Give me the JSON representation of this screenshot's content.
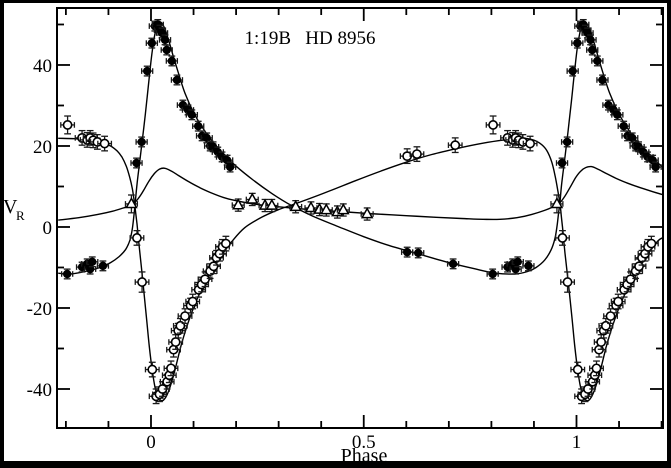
{
  "figure": {
    "title": "1:19B   HD 8956",
    "xlabel": "Phase",
    "ylabel": "V",
    "ylabel_sub": "R"
  },
  "colors": {
    "ink": "#000000",
    "paper": "#ffffff"
  },
  "axes": {
    "x": {
      "major_ticks": [
        0,
        0.5,
        1
      ],
      "major_labels": [
        "0",
        "0.5",
        "1"
      ],
      "minor_step": 0.1,
      "minor_from": -0.2,
      "minor_to": 1.2
    },
    "y": {
      "major_ticks": [
        -40,
        -20,
        0,
        20,
        40
      ],
      "major_labels": [
        "-40",
        "-20",
        "0",
        "20",
        "40"
      ],
      "minor_step": 10,
      "minor_from": -50,
      "minor_to": 50
    }
  },
  "chart_data": {
    "type": "scatter",
    "title": "1:19B HD 8956",
    "xlabel": "Phase",
    "ylabel": "V_R",
    "xlim": [
      -0.2209,
      1.2033
    ],
    "ylim": [
      -49.63,
      54.07
    ],
    "grid": false,
    "legend": "none",
    "phase_fold_note": "points with phase <= 0.203 are re-plotted at phase+1; points with phase >= 0.779 are re-plotted at phase-1",
    "series": [
      {
        "name": "primary component (filled circles)",
        "marker": "filled-circle",
        "x_err": 0.013,
        "y_err": 1.2,
        "points": [
          [
            0.002,
            45.4
          ],
          [
            0.009,
            49.6
          ],
          [
            0.016,
            50.0
          ],
          [
            0.021,
            48.6
          ],
          [
            0.026,
            47.9
          ],
          [
            0.033,
            46.2
          ],
          [
            0.037,
            43.7
          ],
          [
            0.049,
            41.0
          ],
          [
            0.061,
            36.3
          ],
          [
            0.075,
            30.1
          ],
          [
            0.087,
            28.9
          ],
          [
            0.096,
            27.7
          ],
          [
            0.111,
            24.9
          ],
          [
            0.12,
            22.5
          ],
          [
            0.131,
            22.0
          ],
          [
            0.139,
            20.0
          ],
          [
            0.146,
            19.8
          ],
          [
            0.157,
            18.5
          ],
          [
            0.167,
            17.3
          ],
          [
            0.179,
            16.5
          ],
          [
            0.186,
            14.8
          ],
          [
            0.602,
            -6.2
          ],
          [
            0.628,
            -6.4
          ],
          [
            0.71,
            -9.1
          ],
          [
            0.803,
            -11.6
          ],
          [
            0.838,
            -9.9
          ],
          [
            0.85,
            -9.1
          ],
          [
            0.857,
            -10.4
          ],
          [
            0.862,
            -8.6
          ],
          [
            0.887,
            -9.6
          ],
          [
            0.966,
            15.8
          ],
          [
            0.978,
            21.0
          ],
          [
            0.991,
            38.5
          ]
        ]
      },
      {
        "name": "secondary component (open circles)",
        "marker": "open-circle",
        "x_err": 0.016,
        "y_err": 1.8,
        "points": [
          [
            0.003,
            -35.2
          ],
          [
            0.012,
            -41.8
          ],
          [
            0.02,
            -41.3
          ],
          [
            0.027,
            -40.0
          ],
          [
            0.038,
            -38.2
          ],
          [
            0.043,
            -36.6
          ],
          [
            0.047,
            -34.9
          ],
          [
            0.053,
            -30.3
          ],
          [
            0.058,
            -28.4
          ],
          [
            0.064,
            -25.6
          ],
          [
            0.069,
            -24.4
          ],
          [
            0.08,
            -22.0
          ],
          [
            0.093,
            -19.4
          ],
          [
            0.098,
            -18.4
          ],
          [
            0.112,
            -15.5
          ],
          [
            0.119,
            -14.2
          ],
          [
            0.127,
            -12.9
          ],
          [
            0.139,
            -10.9
          ],
          [
            0.147,
            -9.7
          ],
          [
            0.154,
            -7.6
          ],
          [
            0.161,
            -6.6
          ],
          [
            0.168,
            -4.9
          ],
          [
            0.176,
            -4.1
          ],
          [
            0.602,
            17.5
          ],
          [
            0.625,
            18.0
          ],
          [
            0.715,
            20.2
          ],
          [
            0.804,
            25.2,
            2.2
          ],
          [
            0.838,
            22.0
          ],
          [
            0.85,
            21.5
          ],
          [
            0.857,
            22.0
          ],
          [
            0.864,
            21.4
          ],
          [
            0.874,
            21.0
          ],
          [
            0.891,
            20.6
          ],
          [
            0.967,
            -2.7
          ],
          [
            0.979,
            -13.6,
            2.5
          ]
        ]
      },
      {
        "name": "tertiary component (open triangles)",
        "marker": "open-triangle",
        "x_err": 0.014,
        "y_err": 1.5,
        "points": [
          [
            0.205,
            5.4
          ],
          [
            0.238,
            6.8
          ],
          [
            0.268,
            5.3
          ],
          [
            0.284,
            5.3
          ],
          [
            0.34,
            5.0
          ],
          [
            0.376,
            4.7
          ],
          [
            0.396,
            4.3
          ],
          [
            0.412,
            4.2
          ],
          [
            0.438,
            3.7
          ],
          [
            0.452,
            4.2
          ],
          [
            0.508,
            3.2
          ],
          [
            0.954,
            5.7,
            2.2
          ]
        ]
      }
    ],
    "curves": [
      {
        "name": "primary model curve",
        "points": [
          [
            -0.218,
            -11.4
          ],
          [
            -0.19,
            -11.6
          ],
          [
            -0.155,
            -11.0
          ],
          [
            -0.12,
            -10.0
          ],
          [
            -0.095,
            -8.8
          ],
          [
            -0.075,
            -7.3
          ],
          [
            -0.06,
            -5.6
          ],
          [
            -0.05,
            -3.4
          ],
          [
            -0.044,
            -0.5
          ],
          [
            -0.04,
            3.0
          ],
          [
            -0.037,
            5.9
          ],
          [
            -0.033,
            10.5
          ],
          [
            -0.026,
            16.5
          ],
          [
            -0.018,
            23.5
          ],
          [
            -0.01,
            31.0
          ],
          [
            -0.003,
            38.0
          ],
          [
            0.003,
            43.5
          ],
          [
            0.009,
            47.5
          ],
          [
            0.016,
            50.0
          ],
          [
            0.023,
            50.6
          ],
          [
            0.031,
            49.3
          ],
          [
            0.041,
            46.3
          ],
          [
            0.052,
            42.3
          ],
          [
            0.065,
            37.8
          ],
          [
            0.08,
            33.0
          ],
          [
            0.1,
            28.3
          ],
          [
            0.12,
            24.7
          ],
          [
            0.145,
            21.0
          ],
          [
            0.17,
            18.0
          ],
          [
            0.2,
            15.0
          ],
          [
            0.24,
            11.6
          ],
          [
            0.285,
            8.2
          ],
          [
            0.33,
            5.3
          ],
          [
            0.38,
            2.7
          ],
          [
            0.44,
            0.1
          ],
          [
            0.5,
            -2.4
          ],
          [
            0.56,
            -4.6
          ],
          [
            0.63,
            -6.7
          ],
          [
            0.7,
            -8.8
          ],
          [
            0.76,
            -10.3
          ],
          [
            0.81,
            -11.4
          ],
          [
            0.855,
            -11.6
          ],
          [
            0.885,
            -11.0
          ],
          [
            0.905,
            -10.0
          ],
          [
            0.925,
            -8.2
          ],
          [
            0.94,
            -5.7
          ],
          [
            0.949,
            -3.0
          ],
          [
            0.954,
            0.0
          ],
          [
            0.958,
            3.5
          ],
          [
            0.961,
            5.9
          ],
          [
            0.965,
            10.5
          ],
          [
            0.972,
            16.5
          ],
          [
            0.98,
            23.5
          ],
          [
            0.988,
            31.0
          ],
          [
            0.995,
            38.0
          ],
          [
            1.001,
            43.5
          ],
          [
            1.007,
            47.5
          ],
          [
            1.014,
            50.0
          ],
          [
            1.021,
            50.6
          ],
          [
            1.029,
            49.3
          ],
          [
            1.039,
            46.3
          ],
          [
            1.05,
            42.3
          ],
          [
            1.063,
            37.8
          ],
          [
            1.078,
            33.0
          ],
          [
            1.098,
            28.3
          ],
          [
            1.118,
            24.7
          ],
          [
            1.143,
            21.0
          ],
          [
            1.168,
            18.0
          ],
          [
            1.198,
            15.2
          ],
          [
            1.206,
            14.6
          ]
        ]
      },
      {
        "name": "secondary model curve",
        "points": [
          [
            -0.218,
            21.9
          ],
          [
            -0.18,
            21.8
          ],
          [
            -0.14,
            21.4
          ],
          [
            -0.115,
            20.9
          ],
          [
            -0.095,
            20.0
          ],
          [
            -0.08,
            18.8
          ],
          [
            -0.068,
            17.2
          ],
          [
            -0.058,
            15.0
          ],
          [
            -0.05,
            12.3
          ],
          [
            -0.044,
            9.5
          ],
          [
            -0.04,
            6.8
          ],
          [
            -0.037,
            4.5
          ],
          [
            -0.033,
            0.8
          ],
          [
            -0.027,
            -5.5
          ],
          [
            -0.019,
            -13.5
          ],
          [
            -0.011,
            -22.0
          ],
          [
            -0.004,
            -29.5
          ],
          [
            0.003,
            -35.5
          ],
          [
            0.01,
            -39.8
          ],
          [
            0.018,
            -42.2
          ],
          [
            0.027,
            -42.9
          ],
          [
            0.037,
            -41.6
          ],
          [
            0.047,
            -38.8
          ],
          [
            0.058,
            -34.6
          ],
          [
            0.072,
            -28.8
          ],
          [
            0.09,
            -22.8
          ],
          [
            0.11,
            -17.4
          ],
          [
            0.135,
            -12.2
          ],
          [
            0.16,
            -7.9
          ],
          [
            0.19,
            -3.6
          ],
          [
            0.22,
            -0.2
          ],
          [
            0.26,
            2.4
          ],
          [
            0.3,
            4.3
          ],
          [
            0.33,
            5.4
          ],
          [
            0.37,
            6.9
          ],
          [
            0.42,
            8.9
          ],
          [
            0.48,
            11.4
          ],
          [
            0.54,
            13.8
          ],
          [
            0.6,
            16.0
          ],
          [
            0.66,
            17.9
          ],
          [
            0.72,
            19.4
          ],
          [
            0.78,
            20.7
          ],
          [
            0.83,
            21.5
          ],
          [
            0.87,
            21.9
          ],
          [
            0.895,
            21.6
          ],
          [
            0.915,
            20.6
          ],
          [
            0.93,
            18.9
          ],
          [
            0.942,
            16.0
          ],
          [
            0.95,
            12.5
          ],
          [
            0.956,
            9.0
          ],
          [
            0.96,
            6.5
          ],
          [
            0.963,
            4.0
          ],
          [
            0.967,
            0.0
          ],
          [
            0.973,
            -6.5
          ],
          [
            0.981,
            -14.0
          ],
          [
            0.989,
            -22.0
          ],
          [
            0.996,
            -29.5
          ],
          [
            1.003,
            -35.5
          ],
          [
            1.01,
            -39.8
          ],
          [
            1.018,
            -42.2
          ],
          [
            1.027,
            -42.9
          ],
          [
            1.037,
            -41.6
          ],
          [
            1.047,
            -38.8
          ],
          [
            1.058,
            -34.6
          ],
          [
            1.072,
            -28.8
          ],
          [
            1.09,
            -22.8
          ],
          [
            1.11,
            -17.4
          ],
          [
            1.135,
            -12.2
          ],
          [
            1.16,
            -7.9
          ],
          [
            1.19,
            -3.6
          ],
          [
            1.206,
            -2.5
          ]
        ]
      },
      {
        "name": "tertiary model curve",
        "points": [
          [
            -0.218,
            1.7
          ],
          [
            -0.17,
            2.3
          ],
          [
            -0.125,
            3.1
          ],
          [
            -0.09,
            3.9
          ],
          [
            -0.065,
            4.7
          ],
          [
            -0.048,
            5.3
          ],
          [
            -0.04,
            5.9
          ],
          [
            -0.03,
            7.0
          ],
          [
            -0.018,
            8.9
          ],
          [
            -0.005,
            11.3
          ],
          [
            0.008,
            13.2
          ],
          [
            0.02,
            14.3
          ],
          [
            0.033,
            14.5
          ],
          [
            0.048,
            13.8
          ],
          [
            0.065,
            12.7
          ],
          [
            0.09,
            11.1
          ],
          [
            0.115,
            9.7
          ],
          [
            0.14,
            8.5
          ],
          [
            0.17,
            7.3
          ],
          [
            0.2,
            6.5
          ],
          [
            0.24,
            5.7
          ],
          [
            0.29,
            5.1
          ],
          [
            0.34,
            4.6
          ],
          [
            0.4,
            4.1
          ],
          [
            0.46,
            3.7
          ],
          [
            0.53,
            3.2
          ],
          [
            0.6,
            2.8
          ],
          [
            0.67,
            2.4
          ],
          [
            0.73,
            2.1
          ],
          [
            0.78,
            1.9
          ],
          [
            0.82,
            1.9
          ],
          [
            0.86,
            2.3
          ],
          [
            0.895,
            3.1
          ],
          [
            0.925,
            4.1
          ],
          [
            0.945,
            5.0
          ],
          [
            0.96,
            5.9
          ],
          [
            0.972,
            7.5
          ],
          [
            0.985,
            9.8
          ],
          [
            0.998,
            12.2
          ],
          [
            1.01,
            13.8
          ],
          [
            1.022,
            14.7
          ],
          [
            1.035,
            14.9
          ],
          [
            1.05,
            14.3
          ],
          [
            1.07,
            13.2
          ],
          [
            1.095,
            11.9
          ],
          [
            1.12,
            10.8
          ],
          [
            1.15,
            9.7
          ],
          [
            1.18,
            8.7
          ],
          [
            1.206,
            7.9
          ]
        ]
      }
    ]
  }
}
